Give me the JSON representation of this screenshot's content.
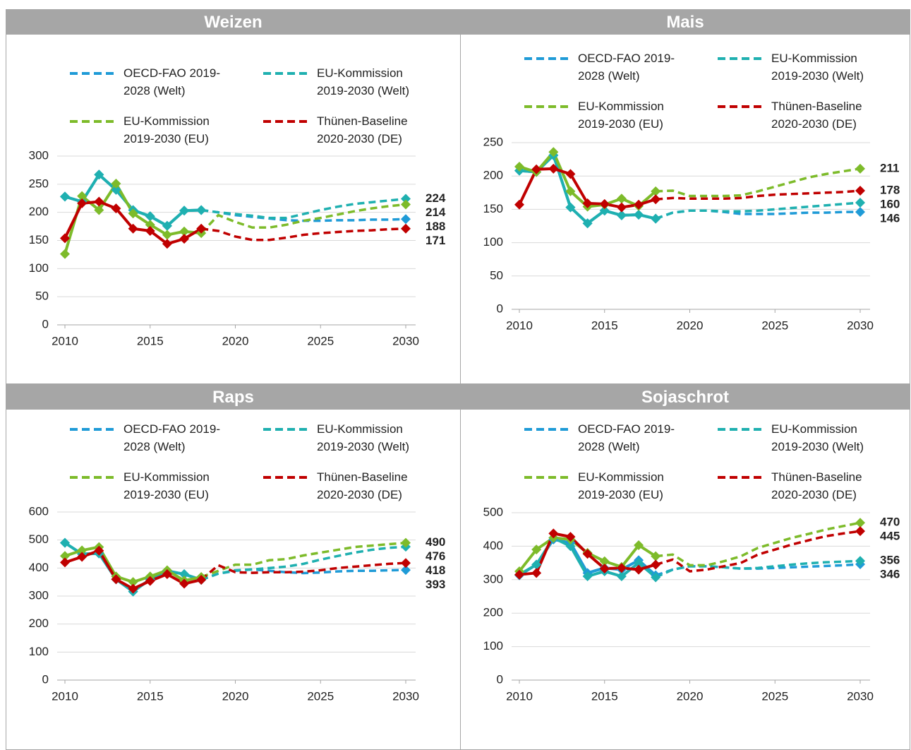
{
  "chart_data": [
    {
      "type": "line",
      "title": "Weizen",
      "x": [
        2010,
        2011,
        2012,
        2013,
        2014,
        2015,
        2016,
        2017,
        2018,
        2019,
        2020,
        2021,
        2022,
        2023,
        2024,
        2025,
        2026,
        2027,
        2028,
        2029,
        2030
      ],
      "xlim": [
        2010,
        2030
      ],
      "xticks": [
        2010,
        2015,
        2020,
        2025,
        2030
      ],
      "ylim": [
        0,
        300
      ],
      "yticks": [
        0,
        50,
        100,
        150,
        200,
        250,
        300
      ],
      "grid": true,
      "series": [
        {
          "name": "OECD-FAO 2019-2028 (Welt)",
          "color": "#1f9bd7",
          "values": [
            228,
            219,
            267,
            240,
            204,
            193,
            176,
            203,
            204,
            200,
            195,
            192,
            189,
            186,
            185,
            185,
            186,
            186,
            187,
            187,
            188
          ]
        },
        {
          "name": "EU-Kommission 2019-2030 (Welt)",
          "color": "#1fb0b0",
          "values": [
            228,
            219,
            267,
            240,
            204,
            193,
            176,
            203,
            204,
            200,
            197,
            194,
            190,
            190,
            197,
            204,
            210,
            215,
            218,
            221,
            224
          ]
        },
        {
          "name": "EU-Kommission 2019-2030 (EU)",
          "color": "#7dbb2a",
          "values": [
            126,
            229,
            204,
            251,
            198,
            178,
            160,
            166,
            163,
            195,
            183,
            173,
            173,
            178,
            185,
            190,
            196,
            202,
            207,
            211,
            214
          ]
        },
        {
          "name": "Thünen-Baseline 2020-2030 (DE)",
          "color": "#c00000",
          "values": [
            154,
            216,
            219,
            207,
            171,
            167,
            144,
            153,
            171,
            167,
            157,
            151,
            151,
            155,
            160,
            163,
            165,
            167,
            168,
            170,
            171
          ]
        }
      ]
    },
    {
      "type": "line",
      "title": "Mais",
      "x": [
        2010,
        2011,
        2012,
        2013,
        2014,
        2015,
        2016,
        2017,
        2018,
        2019,
        2020,
        2021,
        2022,
        2023,
        2024,
        2025,
        2026,
        2027,
        2028,
        2029,
        2030
      ],
      "xlim": [
        2010,
        2030
      ],
      "xticks": [
        2010,
        2015,
        2020,
        2025,
        2030
      ],
      "ylim": [
        0,
        250
      ],
      "yticks": [
        0,
        50,
        100,
        150,
        200,
        250
      ],
      "grid": true,
      "series": [
        {
          "name": "OECD-FAO 2019-2028 (Welt)",
          "color": "#1f9bd7",
          "values": [
            208,
            206,
            231,
            153,
            129,
            148,
            141,
            142,
            136,
            145,
            148,
            148,
            146,
            143,
            143,
            143,
            144,
            145,
            145,
            146,
            146
          ]
        },
        {
          "name": "EU-Kommission 2019-2030 (Welt)",
          "color": "#1fb0b0",
          "values": [
            208,
            206,
            231,
            153,
            129,
            148,
            141,
            142,
            136,
            145,
            148,
            148,
            147,
            147,
            148,
            150,
            152,
            154,
            156,
            158,
            160
          ]
        },
        {
          "name": "EU-Kommission 2019-2030 (EU)",
          "color": "#7dbb2a",
          "values": [
            214,
            206,
            236,
            177,
            154,
            157,
            166,
            155,
            177,
            178,
            170,
            170,
            170,
            171,
            177,
            184,
            191,
            198,
            203,
            207,
            211
          ]
        },
        {
          "name": "Thünen-Baseline 2020-2030 (DE)",
          "color": "#c00000",
          "values": [
            157,
            210,
            211,
            203,
            159,
            158,
            153,
            157,
            165,
            167,
            166,
            166,
            166,
            167,
            170,
            172,
            173,
            174,
            175,
            176,
            178
          ]
        }
      ]
    },
    {
      "type": "line",
      "title": "Raps",
      "x": [
        2010,
        2011,
        2012,
        2013,
        2014,
        2015,
        2016,
        2017,
        2018,
        2019,
        2020,
        2021,
        2022,
        2023,
        2024,
        2025,
        2026,
        2027,
        2028,
        2029,
        2030
      ],
      "xlim": [
        2010,
        2030
      ],
      "xticks": [
        2010,
        2015,
        2020,
        2025,
        2030
      ],
      "ylim": [
        0,
        600
      ],
      "yticks": [
        0,
        100,
        200,
        300,
        400,
        500,
        600
      ],
      "grid": true,
      "series": [
        {
          "name": "OECD-FAO 2019-2028 (Welt)",
          "color": "#1f9bd7",
          "values": [
            490,
            450,
            452,
            360,
            316,
            360,
            390,
            378,
            358,
            380,
            390,
            395,
            390,
            385,
            382,
            384,
            388,
            390,
            390,
            392,
            393
          ]
        },
        {
          "name": "EU-Kommission 2019-2030 (Welt)",
          "color": "#1fb0b0",
          "values": [
            490,
            450,
            452,
            360,
            316,
            360,
            390,
            378,
            358,
            380,
            392,
            395,
            400,
            405,
            415,
            430,
            443,
            455,
            465,
            472,
            476
          ]
        },
        {
          "name": "EU-Kommission 2019-2030 (EU)",
          "color": "#7dbb2a",
          "values": [
            443,
            463,
            475,
            370,
            350,
            370,
            392,
            355,
            368,
            390,
            412,
            412,
            428,
            432,
            445,
            455,
            465,
            475,
            480,
            485,
            490
          ]
        },
        {
          "name": "Thünen-Baseline 2020-2030 (DE)",
          "color": "#c00000",
          "values": [
            420,
            440,
            462,
            360,
            326,
            354,
            378,
            344,
            358,
            410,
            385,
            383,
            385,
            385,
            387,
            392,
            400,
            405,
            410,
            415,
            418
          ]
        }
      ]
    },
    {
      "type": "line",
      "title": "Sojaschrot",
      "x": [
        2010,
        2011,
        2012,
        2013,
        2014,
        2015,
        2016,
        2017,
        2018,
        2019,
        2020,
        2021,
        2022,
        2023,
        2024,
        2025,
        2026,
        2027,
        2028,
        2029,
        2030
      ],
      "xlim": [
        2010,
        2030
      ],
      "xticks": [
        2010,
        2015,
        2020,
        2025,
        2030
      ],
      "ylim": [
        0,
        500
      ],
      "yticks": [
        0,
        100,
        200,
        300,
        400,
        500
      ],
      "grid": true,
      "series": [
        {
          "name": "OECD-FAO 2019-2028 (Welt)",
          "color": "#1f9bd7",
          "values": [
            313,
            345,
            420,
            410,
            320,
            335,
            330,
            358,
            313,
            330,
            340,
            340,
            337,
            333,
            333,
            335,
            337,
            339,
            341,
            343,
            346
          ]
        },
        {
          "name": "EU-Kommission 2019-2030 (Welt)",
          "color": "#1fb0b0",
          "values": [
            315,
            345,
            425,
            400,
            310,
            325,
            310,
            350,
            307,
            330,
            340,
            340,
            337,
            333,
            335,
            340,
            345,
            349,
            352,
            354,
            356
          ]
        },
        {
          "name": "EU-Kommission 2019-2030 (EU)",
          "color": "#7dbb2a",
          "values": [
            325,
            390,
            425,
            420,
            380,
            355,
            338,
            403,
            370,
            375,
            343,
            343,
            355,
            370,
            395,
            410,
            425,
            437,
            450,
            460,
            470
          ]
        },
        {
          "name": "Thünen-Baseline 2020-2030 (DE)",
          "color": "#c00000",
          "values": [
            315,
            320,
            438,
            428,
            377,
            333,
            335,
            330,
            345,
            360,
            325,
            330,
            340,
            350,
            375,
            390,
            405,
            418,
            430,
            438,
            445
          ]
        }
      ]
    }
  ]
}
